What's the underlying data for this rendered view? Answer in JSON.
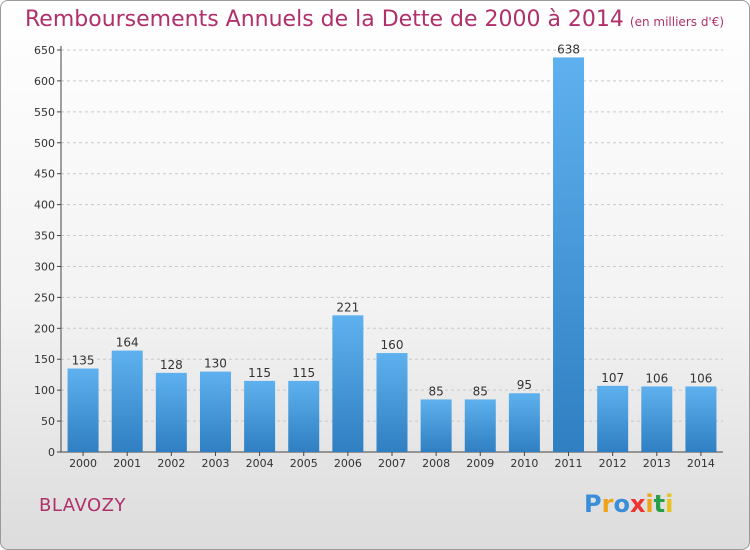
{
  "header": {
    "title": "Remboursements Annuels de la Dette de 2000 à 2014",
    "unit": "(en milliers d'€)"
  },
  "footer": {
    "place": "BLAVOZY",
    "logo_text": "Proxiti"
  },
  "colors": {
    "title": "#b0306b",
    "bar_light": "#5eb1ee",
    "bar_dark": "#2f7fc2",
    "grid": "#c8c8c8"
  },
  "chart_data": {
    "type": "bar",
    "title": "Remboursements Annuels de la Dette de 2000 à 2014",
    "unit": "(en milliers d'€)",
    "categories": [
      "2000",
      "2001",
      "2002",
      "2003",
      "2004",
      "2005",
      "2006",
      "2007",
      "2008",
      "2009",
      "2010",
      "2011",
      "2012",
      "2013",
      "2014"
    ],
    "values": [
      135,
      164,
      128,
      130,
      115,
      115,
      221,
      160,
      85,
      85,
      95,
      638,
      107,
      106,
      106
    ],
    "ylim": [
      0,
      650
    ],
    "yticks": [
      0,
      50,
      100,
      150,
      200,
      250,
      300,
      350,
      400,
      450,
      500,
      550,
      600,
      650
    ],
    "grid": "horizontal dashed",
    "data_labels": true
  }
}
